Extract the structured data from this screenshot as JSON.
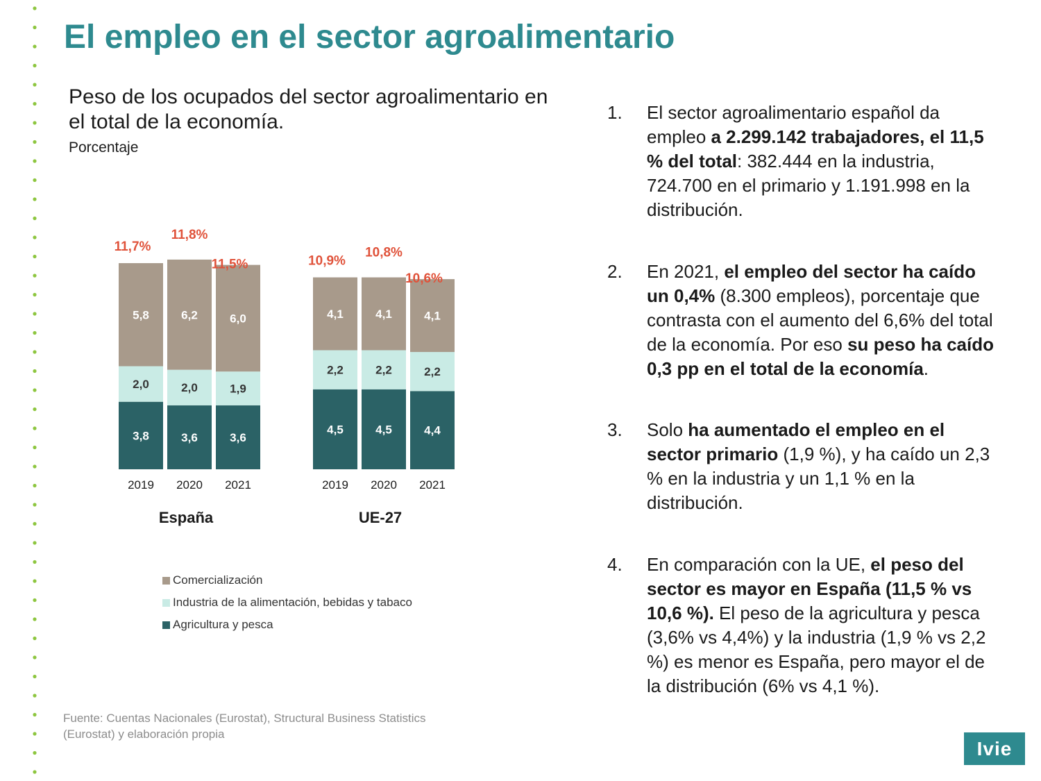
{
  "title": "El empleo en el sector agroalimentario",
  "chart_header": {
    "title": "Peso de los ocupados del sector agroalimentario en el total de la economía.",
    "unit": "Porcentaje"
  },
  "colors": {
    "accent": "#2e8a8f",
    "comercializacion": "#a89a8b",
    "industria": "#c9ebe5",
    "agricultura": "#2b6266",
    "total_label": "#e0523a",
    "dots": "#8dc63f"
  },
  "chart_data": {
    "type": "bar",
    "stacked": true,
    "groups": [
      "España",
      "UE-27"
    ],
    "categories": [
      "2019",
      "2020",
      "2021"
    ],
    "series": [
      {
        "name": "Agricultura y pesca",
        "color": "#2b6266",
        "values": [
          [
            3.8,
            3.6,
            3.6
          ],
          [
            4.5,
            4.5,
            4.4
          ]
        ],
        "labels": [
          [
            "3,8",
            "3,6",
            "3,6"
          ],
          [
            "4,5",
            "4,5",
            "4,4"
          ]
        ]
      },
      {
        "name": "Industria de la alimentación, bebidas y tabaco",
        "color": "#c9ebe5",
        "values": [
          [
            2.0,
            2.0,
            1.9
          ],
          [
            2.2,
            2.2,
            2.2
          ]
        ],
        "labels": [
          [
            "2,0",
            "2,0",
            "1,9"
          ],
          [
            "2,2",
            "2,2",
            "2,2"
          ]
        ]
      },
      {
        "name": "Comercialización",
        "color": "#a89a8b",
        "values": [
          [
            5.8,
            6.2,
            6.0
          ],
          [
            4.1,
            4.1,
            4.1
          ]
        ],
        "labels": [
          [
            "5,8",
            "6,2",
            "6,0"
          ],
          [
            "4,1",
            "4,1",
            "4,1"
          ]
        ]
      }
    ],
    "totals": [
      [
        "11,7%",
        "11,8%",
        "11,5%"
      ],
      [
        "10,9%",
        "10,8%",
        "10,6%"
      ]
    ],
    "legend": [
      "Comercialización",
      "Industria de la alimentación, bebidas y tabaco",
      "Agricultura y pesca"
    ],
    "legend_position": "bottom-left",
    "grid": false
  },
  "source": "Fuente: Cuentas Nacionales (Eurostat), Structural Business Statistics (Eurostat) y elaboración propia",
  "points": [
    {
      "num": "1.",
      "parts": [
        {
          "t": "El sector agroalimentario español da empleo ",
          "b": false
        },
        {
          "t": "a 2.299.142 trabajadores, el 11,5 % del total",
          "b": true
        },
        {
          "t": ": 382.444 en la industria, 724.700 en el primario y 1.191.998 en la distribución.",
          "b": false
        }
      ]
    },
    {
      "num": "2.",
      "parts": [
        {
          "t": "En 2021, ",
          "b": false
        },
        {
          "t": "el empleo del sector ha caído un 0,4%",
          "b": true
        },
        {
          "t": " (8.300 empleos), porcentaje que contrasta con el aumento del 6,6% del total de la economía. Por eso ",
          "b": false
        },
        {
          "t": "su peso ha caído 0,3 pp en el total de la economía",
          "b": true
        },
        {
          "t": ".",
          "b": false
        }
      ]
    },
    {
      "num": "3.",
      "parts": [
        {
          "t": "Solo ",
          "b": false
        },
        {
          "t": "ha aumentado el empleo en el sector primario",
          "b": true
        },
        {
          "t": " (1,9 %), y ha caído un 2,3 % en la industria y un 1,1 % en la distribución.",
          "b": false
        }
      ]
    },
    {
      "num": "4.",
      "parts": [
        {
          "t": "En comparación con la UE, ",
          "b": false
        },
        {
          "t": "el peso del sector es mayor en España (11,5 % vs 10,6 %).",
          "b": true
        },
        {
          "t": " El peso de la agricultura y pesca (3,6% vs 4,4%) y la industria (1,9 % vs 2,2 %) es menor es España, pero mayor el de la distribución (6% vs 4,1 %).",
          "b": false
        }
      ]
    }
  ],
  "logo": "Ivie"
}
